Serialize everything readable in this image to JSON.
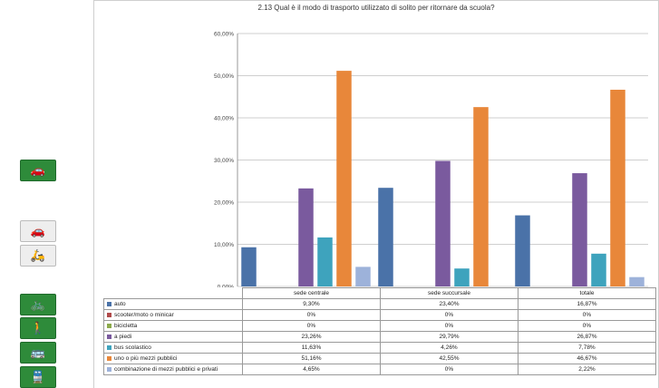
{
  "sidebar": {
    "icons": [
      {
        "name": "car-icon",
        "glyph": "🚗",
        "style": "green"
      },
      {
        "name": "car-icon-gray",
        "glyph": "🚗",
        "style": "gray"
      },
      {
        "name": "scooter-icon",
        "glyph": "🛵",
        "style": "gray"
      },
      {
        "name": "bicycle-icon",
        "glyph": "🚲",
        "style": "green"
      },
      {
        "name": "pedestrians-icon",
        "glyph": "🚶",
        "style": "green"
      },
      {
        "name": "bus-icon",
        "glyph": "🚌",
        "style": "green"
      },
      {
        "name": "train-icon",
        "glyph": "🚆",
        "style": "green"
      }
    ]
  },
  "chart_data": {
    "type": "bar",
    "title": "2.13 Qual è il modo di trasporto utilizzato di solito per ritornare da scuola?",
    "categories": [
      "sede centrale",
      "sede succursale",
      "totale"
    ],
    "ylim": [
      0,
      60
    ],
    "yticks": [
      "0,00%",
      "10,00%",
      "20,00%",
      "30,00%",
      "40,00%",
      "50,00%",
      "60,00%"
    ],
    "legend_placement": "table-below",
    "series": [
      {
        "name": "auto",
        "color": "#4a72a8",
        "values": [
          9.3,
          23.4,
          16.87
        ],
        "labels": [
          "9,30%",
          "23,40%",
          "16,87%"
        ]
      },
      {
        "name": "scooter/moto o minicar",
        "color": "#b04a4a",
        "values": [
          0,
          0,
          0
        ],
        "labels": [
          "0%",
          "0%",
          "0%"
        ]
      },
      {
        "name": "bicicletta",
        "color": "#8caa4c",
        "values": [
          0,
          0,
          0
        ],
        "labels": [
          "0%",
          "0%",
          "0%"
        ]
      },
      {
        "name": "a piedi",
        "color": "#7a5a9e",
        "values": [
          23.26,
          29.79,
          26.87
        ],
        "labels": [
          "23,26%",
          "29,79%",
          "26,87%"
        ]
      },
      {
        "name": "bus scolastico",
        "color": "#3ea3bd",
        "values": [
          11.63,
          4.26,
          7.78
        ],
        "labels": [
          "11,63%",
          "4,26%",
          "7,78%"
        ]
      },
      {
        "name": "uno o più mezzi pubblici",
        "color": "#e8873a",
        "values": [
          51.16,
          42.55,
          46.67
        ],
        "labels": [
          "51,16%",
          "42,55%",
          "46,67%"
        ]
      },
      {
        "name": "combinazione di mezzi pubblici e privati",
        "color": "#9db2da",
        "values": [
          4.65,
          0,
          2.22
        ],
        "labels": [
          "4,65%",
          "0%",
          "2,22%"
        ]
      }
    ]
  }
}
